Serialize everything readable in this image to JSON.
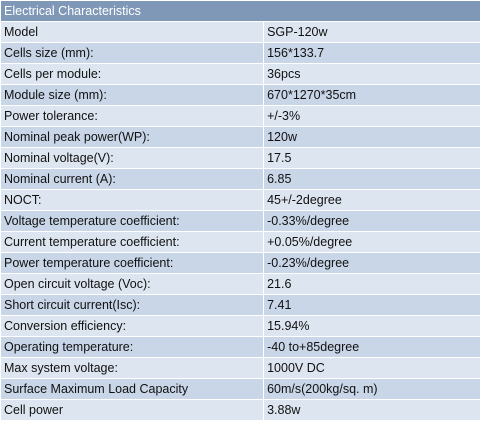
{
  "table": {
    "title": "Electrical Characteristics",
    "rows": [
      {
        "label": "Model",
        "value": "SGP-120w"
      },
      {
        "label": "Cells size (mm):",
        "value": "156*133.7"
      },
      {
        "label": "Cells per module:",
        "value": "36pcs"
      },
      {
        "label": "Module size (mm):",
        "value": "670*1270*35cm"
      },
      {
        "label": "Power tolerance:",
        "value": "+/-3%"
      },
      {
        "label": "Nominal peak power(WP):",
        "value": "120w"
      },
      {
        "label": "Nominal voltage(V):",
        "value": "17.5"
      },
      {
        "label": "Nominal current (A):",
        "value": "6.85"
      },
      {
        "label": "NOCT:",
        "value": "45+/-2degree"
      },
      {
        "label": "Voltage temperature coefficient:",
        "value": "-0.33%/degree"
      },
      {
        "label": "Current temperature coefficient:",
        "value": "+0.05%/degree"
      },
      {
        "label": "Power temperature coefficient:",
        "value": "-0.23%/degree"
      },
      {
        "label": "Open circuit voltage (Voc):",
        "value": "21.6"
      },
      {
        "label": "Short circuit current(Isc):",
        "value": "7.41"
      },
      {
        "label": "Conversion efficiency:",
        "value": "15.94%"
      },
      {
        "label": "Operating temperature:",
        "value": "-40 to+85degree"
      },
      {
        "label": "Max system voltage:",
        "value": "1000V DC"
      },
      {
        "label": "Surface Maximum Load Capacity",
        "value": "60m/s(200kg/sq. m)"
      },
      {
        "label": "Cell power",
        "value": "3.88w"
      }
    ]
  }
}
